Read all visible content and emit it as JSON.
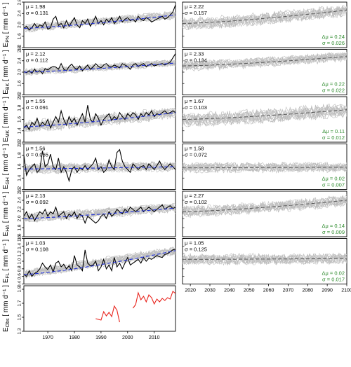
{
  "figure": {
    "period_left": [
      1961,
      2018
    ],
    "period_right": [
      2016,
      2100
    ],
    "x_ticks_left": [
      "1970",
      "1980",
      "1990",
      "2000",
      "2010"
    ],
    "x_ticks_right": [
      "2020",
      "2030",
      "2040",
      "2050",
      "2060",
      "2070",
      "2080",
      "2090",
      "2100"
    ],
    "colors": {
      "observed": "#000000",
      "ensemble": "#bdbdbd",
      "trend_hist": "#1f2fd6",
      "trend_future": "#555555",
      "green_text": "#2e8b2e",
      "obs_red": "#e8231c"
    }
  },
  "chart_data": [
    {
      "type": "line",
      "panel": "E_PN",
      "ylabel": "E",
      "ylabel_sub": "PN",
      "ylabel_unit": " [ mm d⁻¹ ]",
      "ylim": [
        1.2,
        2.8
      ],
      "yticks": [
        "1.2",
        "1.6",
        "2.0",
        "2.4",
        "2.8"
      ],
      "hist": {
        "mu": "μ = 1.98",
        "sigma": "σ = 0.131",
        "start": 1.88,
        "trend_end": 2.35,
        "noise": 0.12
      },
      "future": {
        "mu": "μ = 2.22",
        "sigma": "σ = 0.157",
        "delta": "Δμ = 0.24",
        "dsigma": "σ = 0.026",
        "start": 2.05,
        "end": 2.52,
        "noise": 0.17
      },
      "observed": [
        1.88,
        1.95,
        1.82,
        1.9,
        2.05,
        1.9,
        2.0,
        1.95,
        2.1,
        1.85,
        1.9,
        2.2,
        2.3,
        1.98,
        2.05,
        1.9,
        2.15,
        1.95,
        2.1,
        2.25,
        2.0,
        1.9,
        2.15,
        2.05,
        2.2,
        1.95,
        2.1,
        2.3,
        2.05,
        2.15,
        2.0,
        2.2,
        2.1,
        2.25,
        2.05,
        2.15,
        2.3,
        2.1,
        2.2,
        2.25,
        2.15,
        2.2,
        2.1,
        2.3,
        2.2,
        2.15,
        2.25,
        2.2,
        2.1,
        2.15,
        2.2,
        2.25,
        2.3,
        2.2,
        2.25,
        2.35,
        2.45,
        2.7
      ]
    },
    {
      "type": "line",
      "panel": "E_BK",
      "ylabel": "E",
      "ylabel_sub": "BK",
      "ylabel_unit": " [ mm d⁻¹ ]",
      "ylim": [
        1.2,
        2.8
      ],
      "yticks": [
        "1.2",
        "1.6",
        "2.0",
        "2.4",
        "2.8"
      ],
      "hist": {
        "mu": "μ = 2.12",
        "sigma": "σ = 0.112",
        "start": 2.0,
        "trend_end": 2.32,
        "noise": 0.11
      },
      "future": {
        "mu": "μ = 2.33",
        "sigma": "σ = 0.134",
        "delta": "Δμ = 0.22",
        "dsigma": "σ = 0.022",
        "start": 2.22,
        "end": 2.55,
        "noise": 0.14
      },
      "observed": [
        2.02,
        1.98,
        2.05,
        1.96,
        2.1,
        2.0,
        2.05,
        1.95,
        2.12,
        2.08,
        2.15,
        2.2,
        2.18,
        2.1,
        2.3,
        2.1,
        2.05,
        2.2,
        2.28,
        2.15,
        2.1,
        2.22,
        2.05,
        2.15,
        2.25,
        2.1,
        2.18,
        2.3,
        2.2,
        2.15,
        2.25,
        2.3,
        2.2,
        2.18,
        2.25,
        2.2,
        2.15,
        2.3,
        2.25,
        2.2,
        2.1,
        2.25,
        2.3,
        2.2,
        2.25,
        2.3,
        2.2,
        2.25,
        2.3,
        2.22,
        2.25,
        2.28,
        2.3,
        2.25,
        2.3,
        2.35,
        2.5,
        2.65
      ]
    },
    {
      "type": "line",
      "panel": "E_MK",
      "ylabel": "E",
      "ylabel_sub": "MK",
      "ylabel_unit": " [ mm d⁻¹ ]",
      "ylim": [
        1.2,
        2.0
      ],
      "yticks": [
        "1.2",
        "1.4",
        "1.6",
        "1.8",
        "2.0"
      ],
      "hist": {
        "mu": "μ = 1.55",
        "sigma": "σ = 0.091",
        "start": 1.47,
        "trend_end": 1.72,
        "noise": 0.09
      },
      "future": {
        "mu": "μ = 1.67",
        "sigma": "σ = 0.103",
        "delta": "Δμ = 0.11",
        "dsigma": "σ = 0.012",
        "start": 1.6,
        "end": 1.77,
        "noise": 0.1
      },
      "observed": [
        1.45,
        1.5,
        1.42,
        1.55,
        1.5,
        1.62,
        1.48,
        1.55,
        1.5,
        1.6,
        1.45,
        1.55,
        1.65,
        1.55,
        1.75,
        1.6,
        1.5,
        1.65,
        1.55,
        1.62,
        1.5,
        1.6,
        1.7,
        1.55,
        1.85,
        1.6,
        1.55,
        1.7,
        1.62,
        1.5,
        1.6,
        1.65,
        1.7,
        1.58,
        1.65,
        1.6,
        1.72,
        1.65,
        1.6,
        1.7,
        1.65,
        1.72,
        1.68,
        1.6,
        1.7,
        1.65,
        1.72,
        1.68,
        1.75,
        1.65,
        1.7,
        1.68,
        1.72,
        1.75,
        1.7,
        1.72,
        1.75,
        1.72
      ]
    },
    {
      "type": "line",
      "panel": "E_GH",
      "ylabel": "E",
      "ylabel_sub": "GH",
      "ylabel_unit": " [ mm d⁻¹ ]",
      "ylim": [
        1.2,
        2.0
      ],
      "yticks": [
        "1.2",
        "1.4",
        "1.6",
        "1.8",
        "2.0"
      ],
      "hist": {
        "mu": "μ = 1.56",
        "sigma": "σ = 0.065",
        "start": 1.56,
        "trend_end": 1.6,
        "noise": 0.07
      },
      "future": {
        "mu": "μ = 1.58",
        "sigma": "σ = 0.072",
        "delta": "Δμ = 0.02",
        "dsigma": "σ = 0.007",
        "start": 1.58,
        "end": 1.59,
        "noise": 0.07
      },
      "observed": [
        1.8,
        1.45,
        1.55,
        1.6,
        1.65,
        1.5,
        1.55,
        1.88,
        1.6,
        1.65,
        1.82,
        1.6,
        1.55,
        1.75,
        1.5,
        1.6,
        1.5,
        1.35,
        1.55,
        1.6,
        1.5,
        1.58,
        1.55,
        1.62,
        1.55,
        1.6,
        1.65,
        1.75,
        1.55,
        1.6,
        1.5,
        1.55,
        1.72,
        1.6,
        1.55,
        1.85,
        1.9,
        1.7,
        1.6,
        1.55,
        1.5,
        1.65,
        1.6,
        1.55,
        1.6,
        1.62,
        1.55,
        1.65,
        1.6,
        1.55,
        1.62,
        1.7,
        1.6,
        1.55,
        1.6,
        1.65,
        1.6,
        1.55
      ]
    },
    {
      "type": "line",
      "panel": "E_HA",
      "ylabel": "E",
      "ylabel_sub": "HA",
      "ylabel_unit": " [ mm d⁻¹ ]",
      "ylim": [
        1.6,
        2.6
      ],
      "yticks": [
        "1.6",
        "1.8",
        "2.0",
        "2.2",
        "2.4",
        "2.6"
      ],
      "hist": {
        "mu": "μ = 2.13",
        "sigma": "σ = 0.092",
        "start": 2.0,
        "trend_end": 2.23,
        "noise": 0.09
      },
      "future": {
        "mu": "μ = 2.27",
        "sigma": "σ = 0.102",
        "delta": "Δμ = 0.14",
        "dsigma": "σ = 0.009",
        "start": 2.15,
        "end": 2.4,
        "noise": 0.1
      },
      "observed": [
        2.05,
        2.15,
        2.0,
        2.1,
        1.95,
        2.05,
        2.15,
        2.1,
        2.2,
        2.05,
        2.15,
        2.1,
        2.25,
        2.05,
        2.1,
        2.15,
        2.0,
        2.1,
        2.05,
        2.15,
        2.0,
        2.1,
        2.05,
        1.9,
        2.05,
        2.0,
        1.95,
        1.9,
        1.95,
        2.05,
        2.1,
        2.0,
        2.15,
        2.05,
        2.1,
        2.2,
        2.15,
        2.1,
        2.2,
        2.15,
        2.25,
        2.2,
        2.15,
        2.2,
        2.25,
        2.15,
        2.2,
        2.25,
        2.2,
        2.15,
        2.2,
        2.25,
        2.3,
        2.2,
        2.25,
        2.28,
        2.22,
        2.25
      ]
    },
    {
      "type": "line",
      "panel": "E_FL",
      "ylabel": "E",
      "ylabel_sub": "FL",
      "ylabel_unit": " [ mm d⁻¹ ]",
      "ylim": [
        0.4,
        1.6
      ],
      "yticks": [
        "0.4",
        "0.6",
        "0.8",
        "1.0",
        "1.2",
        "1.4",
        "1.6"
      ],
      "hist": {
        "mu": "μ = 1.03",
        "sigma": "σ = 0.108",
        "start": 0.65,
        "trend_end": 1.28,
        "noise": 0.1
      },
      "future": {
        "mu": "μ = 1.05",
        "sigma": "σ = 0.125",
        "delta": "Δμ = 0.02",
        "dsigma": "σ = 0.017",
        "start": 1.05,
        "end": 1.07,
        "noise": 0.12
      },
      "observed": [
        0.65,
        0.6,
        0.75,
        0.6,
        0.68,
        0.72,
        0.8,
        0.95,
        0.85,
        0.78,
        0.9,
        0.72,
        0.95,
        1.0,
        0.85,
        0.92,
        0.8,
        0.88,
        0.75,
        1.15,
        0.9,
        0.85,
        0.75,
        1.3,
        0.95,
        0.88,
        0.9,
        1.0,
        0.75,
        0.85,
        1.05,
        0.8,
        0.9,
        0.75,
        1.1,
        0.85,
        0.95,
        0.8,
        0.95,
        1.1,
        0.9,
        0.95,
        1.0,
        1.05,
        0.95,
        1.1,
        1.0,
        1.08,
        1.05,
        1.1,
        1.15,
        1.12,
        1.1,
        1.18,
        1.2,
        1.25,
        1.3,
        1.32
      ]
    },
    {
      "type": "line",
      "panel": "E_Obs",
      "ylabel": "E",
      "ylabel_sub": "Obs",
      "ylabel_unit": " [ mm d⁻¹ ]",
      "ylim": [
        1.3,
        1.95
      ],
      "yticks": [
        "1.3",
        "1.5",
        "1.7",
        "1.9"
      ],
      "segments": [
        {
          "x": [
            1988,
            1989,
            1990,
            1991,
            1992,
            1993,
            1994,
            1995,
            1996,
            1997
          ],
          "y": [
            1.48,
            1.47,
            1.46,
            1.58,
            1.52,
            1.57,
            1.51,
            1.66,
            1.6,
            1.43
          ]
        },
        {
          "x": [
            2002,
            2003,
            2004,
            2005,
            2006,
            2007,
            2008,
            2009,
            2010,
            2011,
            2012,
            2013,
            2014,
            2015,
            2016,
            2017,
            2018
          ],
          "y": [
            1.63,
            1.68,
            1.85,
            1.75,
            1.8,
            1.72,
            1.82,
            1.78,
            1.69,
            1.76,
            1.72,
            1.77,
            1.74,
            1.78,
            1.76,
            1.87,
            1.84
          ]
        }
      ]
    }
  ]
}
